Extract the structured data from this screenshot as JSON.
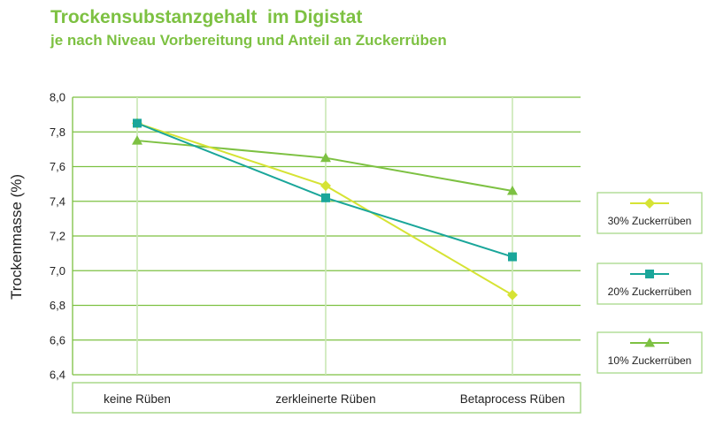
{
  "header": {
    "title": "Trockensubstanzgehalt  im Digistat",
    "subtitle": "je nach Niveau Vorbereitung und Anteil an Zuckerrüben"
  },
  "colors": {
    "accent": "#7dc142",
    "grid": "#7dc142",
    "axis_box_border": "#a8d88a"
  },
  "chart_data": {
    "type": "line",
    "title": "Trockensubstanzgehalt  im Digistat",
    "subtitle": "je nach Niveau Vorbereitung und Anteil an Zuckerrüben",
    "xlabel": "",
    "ylabel": "Trockenmasse (%)",
    "categories": [
      "keine Rüben",
      "zerkleinerte Rüben",
      "Betaprocess Rüben"
    ],
    "ylim": [
      6.4,
      8.0
    ],
    "yticks": [
      "6,4",
      "6,6",
      "6,8",
      "7,0",
      "7,2",
      "7,4",
      "7,6",
      "7,8",
      "8,0"
    ],
    "grid": true,
    "legend_position": "right",
    "series": [
      {
        "name": "30% Zuckerrüben",
        "values": [
          7.85,
          7.49,
          6.86
        ],
        "color": "#d6e334",
        "marker": "diamond"
      },
      {
        "name": "20% Zuckerrüben",
        "values": [
          7.85,
          7.42,
          7.08
        ],
        "color": "#1aa69a",
        "marker": "square"
      },
      {
        "name": "10% Zuckerrüben",
        "values": [
          7.75,
          7.65,
          7.46
        ],
        "color": "#7dc142",
        "marker": "triangle"
      }
    ]
  }
}
